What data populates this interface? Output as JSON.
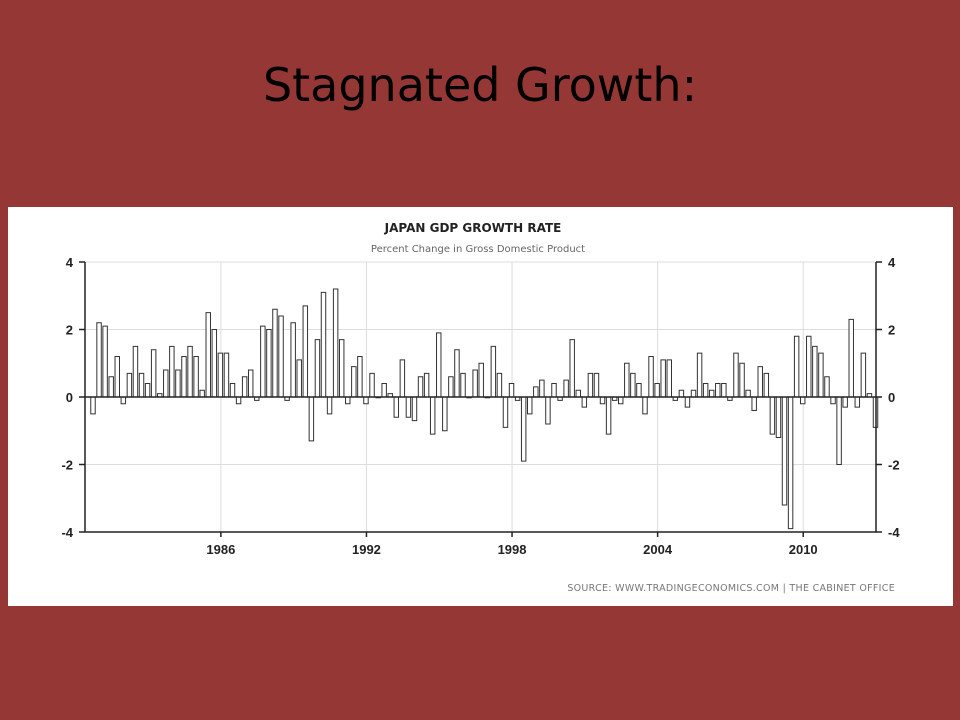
{
  "slide": {
    "title": "Stagnated Growth:"
  },
  "chart_data": {
    "type": "bar",
    "title": "JAPAN GDP GROWTH RATE",
    "subtitle": "Percent Change in Gross Domestic Product",
    "source": "SOURCE: WWW.TRADINGECONOMICS.COM  |  THE CABINET OFFICE",
    "ylim": [
      -4,
      4
    ],
    "yticks": [
      4,
      2,
      0,
      -2,
      -4
    ],
    "xlim": [
      1980.4,
      2013.0
    ],
    "xticks": [
      1986,
      1992,
      1998,
      2004,
      2010
    ],
    "grid": true,
    "series": [
      {
        "start": 1980.75,
        "step": 0.25,
        "values": [
          -0.5,
          2.2,
          2.1,
          0.6,
          1.2,
          -0.2,
          0.7,
          1.5,
          0.7,
          0.4,
          1.4,
          0.1,
          0.8,
          1.5,
          0.8,
          1.2,
          1.5,
          1.2,
          0.2,
          2.5,
          2.0,
          1.3,
          1.3,
          0.4,
          -0.2,
          0.6,
          0.8,
          -0.1,
          2.1,
          2.0,
          2.6,
          2.4,
          -0.1,
          2.2,
          1.1,
          2.7,
          -1.3,
          1.7,
          3.1,
          -0.5,
          3.2,
          1.7,
          -0.2,
          0.9,
          1.2,
          -0.2,
          0.7,
          0.0,
          0.4,
          0.1,
          -0.6,
          1.1,
          -0.6,
          -0.7,
          0.6,
          0.7,
          -1.1,
          1.9,
          -1.0,
          0.6,
          1.4,
          0.7,
          0.0,
          0.8,
          1.0,
          0.0,
          1.5,
          0.7,
          -0.9,
          0.4,
          -0.1,
          -1.9,
          -0.5,
          0.3,
          0.5,
          -0.8,
          0.4,
          -0.1,
          0.5,
          1.7,
          0.2,
          -0.3,
          0.7,
          0.7,
          -0.2,
          -1.1,
          -0.1,
          -0.2,
          1.0,
          0.7,
          0.4,
          -0.5,
          1.2,
          0.4,
          1.1,
          1.1,
          -0.1,
          0.2,
          -0.3,
          0.2,
          1.3,
          0.4,
          0.2,
          0.4,
          0.4,
          -0.1,
          1.3,
          1.0,
          0.2,
          -0.4,
          0.9,
          0.7,
          -1.1,
          -1.2,
          -3.2,
          -3.9,
          1.8,
          -0.2,
          1.8,
          1.5,
          1.3,
          0.6,
          -0.2,
          -2.0,
          -0.3,
          2.3,
          -0.3,
          1.3,
          0.1,
          -0.9
        ]
      }
    ]
  }
}
